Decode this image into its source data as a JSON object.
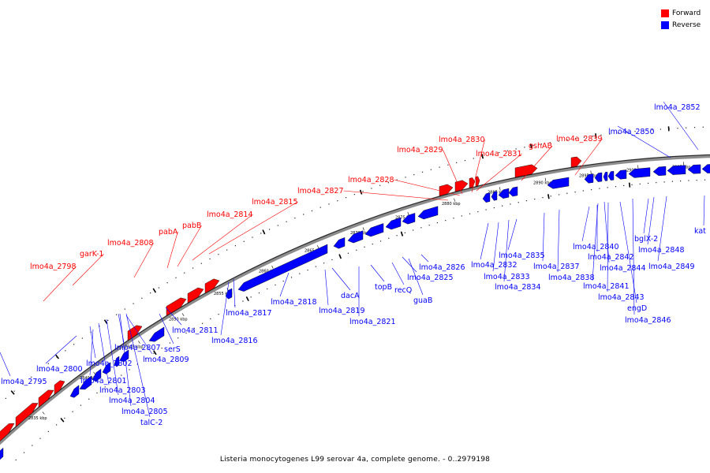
{
  "legend": [
    {
      "label": "Forward",
      "color": "#ff0000"
    },
    {
      "label": "Reverse",
      "color": "#0000ff"
    }
  ],
  "caption": "Listeria monocytogenes L99 serovar 4a, complete genome. - 0..2979198",
  "ticks": [
    "2835 kbp",
    "2840 kbp",
    "2845 kbp",
    "2850 kbp",
    "2855 kbp",
    "2860 kbp",
    "2865 kbp",
    "2870 kbp",
    "2875 kbp",
    "2880 kbp",
    "2885 kbp",
    "2890 kbp",
    "2895 kbp",
    "2900 kbp",
    "2905 kbp"
  ],
  "forward_labels": [
    "lmo4a_2798",
    "garK-1",
    "lmo4a_2808",
    "pabA",
    "pabB",
    "lmo4a_2814",
    "lmo4a_2815",
    "lmo4a_2827",
    "lmo4a_2828",
    "lmo4a_2829",
    "lmo4a_2830",
    "lmo4a_2831",
    "gshAB",
    "lmo4a_2839"
  ],
  "reverse_labels": [
    "lmo4a_2795",
    "lmo4a_2800",
    "lmo4a_2801",
    "lmo4a_2802",
    "lmo4a_2803",
    "lmo4a_2804",
    "lmo4a_2805",
    "talC-2",
    "lmo4a_2807",
    "lmo4a_2809",
    "serS",
    "lmo4a_2811",
    "lmo4a_2816",
    "lmo4a_2817",
    "lmo4a_2818",
    "lmo4a_2819",
    "dacA",
    "lmo4a_2821",
    "topB",
    "recQ",
    "guaB",
    "lmo4a_2825",
    "lmo4a_2826",
    "lmo4a_2832",
    "lmo4a_2833",
    "lmo4a_2834",
    "lmo4a_2835",
    "lmo4a_2837",
    "lmo4a_2838",
    "lmo4a_2840",
    "lmo4a_2841",
    "lmo4a_2842",
    "lmo4a_2843",
    "lmo4a_2844",
    "engD",
    "lmo4a_2846",
    "bglX-2",
    "lmo4a_2848",
    "lmo4a_2849",
    "lmo4a_2850",
    "lmo4a_2852",
    "kat"
  ]
}
